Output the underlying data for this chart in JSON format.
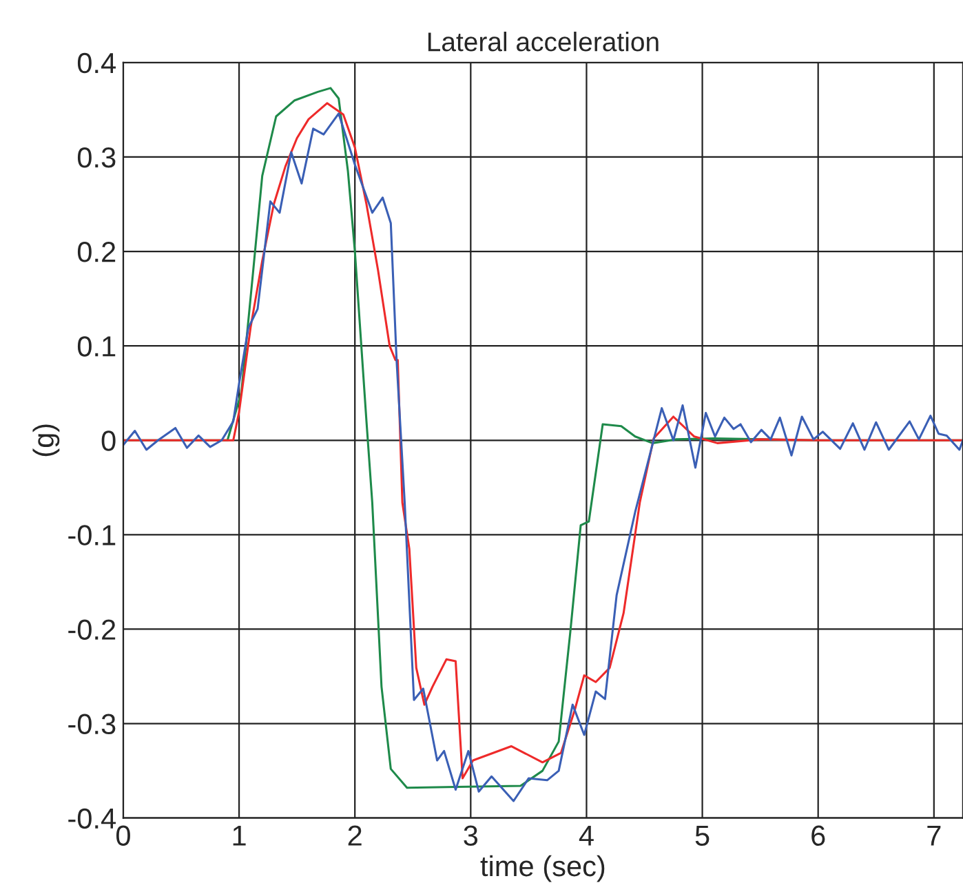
{
  "chart_data": {
    "type": "line",
    "title": "Lateral acceleration",
    "xlabel": "time (sec)",
    "ylabel": "(g)",
    "xlim": [
      0,
      7.25
    ],
    "xticks": [
      0,
      1,
      2,
      3,
      4,
      5,
      6,
      7
    ],
    "ylim": [
      -0.4,
      0.4
    ],
    "yticks": [
      -0.4,
      -0.3,
      -0.2,
      -0.1,
      0,
      0.1,
      0.2,
      0.3,
      0.4
    ],
    "grid": true,
    "marker": "none",
    "line_style": "solid",
    "series": [
      {
        "color": "#1e8a4a",
        "x": [
          0,
          0.5,
          0.9,
          1.02,
          1.12,
          1.2,
          1.32,
          1.48,
          1.68,
          1.79,
          1.86,
          1.94,
          2.0,
          2.04,
          2.1,
          2.15,
          2.23,
          2.31,
          2.45,
          2.87,
          3.43,
          3.62,
          3.76,
          3.86,
          3.95,
          4.02,
          4.14,
          4.3,
          4.42,
          4.57,
          4.77,
          5.1,
          6.0,
          7.25
        ],
        "values": [
          0,
          0,
          0,
          0.051,
          0.177,
          0.28,
          0.343,
          0.36,
          0.369,
          0.373,
          0.362,
          0.285,
          0.2,
          0.128,
          0.02,
          -0.066,
          -0.261,
          -0.348,
          -0.368,
          -0.367,
          -0.366,
          -0.35,
          -0.319,
          -0.203,
          -0.09,
          -0.086,
          0.017,
          0.015,
          0.004,
          -0.003,
          0.001,
          0.002,
          0,
          0
        ]
      },
      {
        "color": "#ee2a2a",
        "x": [
          0,
          0.5,
          0.95,
          1.0,
          1.1,
          1.2,
          1.3,
          1.4,
          1.5,
          1.6,
          1.76,
          1.9,
          2.0,
          2.1,
          2.2,
          2.3,
          2.35,
          2.37,
          2.41,
          2.47,
          2.53,
          2.6,
          2.67,
          2.79,
          2.87,
          2.93,
          3.02,
          3.35,
          3.62,
          3.78,
          3.9,
          3.98,
          4.08,
          4.2,
          4.32,
          4.46,
          4.58,
          4.75,
          4.93,
          5.13,
          5.5,
          6.0,
          7.25
        ],
        "values": [
          0,
          0,
          0,
          0.03,
          0.12,
          0.19,
          0.25,
          0.29,
          0.32,
          0.34,
          0.357,
          0.345,
          0.31,
          0.25,
          0.18,
          0.1,
          0.085,
          0.085,
          -0.066,
          -0.115,
          -0.241,
          -0.28,
          -0.261,
          -0.232,
          -0.234,
          -0.358,
          -0.339,
          -0.324,
          -0.341,
          -0.331,
          -0.285,
          -0.249,
          -0.256,
          -0.241,
          -0.183,
          -0.066,
          0.002,
          0.025,
          0.004,
          -0.003,
          0.001,
          0,
          0
        ]
      },
      {
        "color": "#3a5fb5",
        "x": [
          0,
          0.1,
          0.2,
          0.3,
          0.45,
          0.55,
          0.65,
          0.75,
          0.85,
          0.95,
          1.0,
          1.08,
          1.16,
          1.27,
          1.35,
          1.45,
          1.54,
          1.64,
          1.73,
          1.86,
          2.0,
          2.15,
          2.24,
          2.31,
          2.36,
          2.43,
          2.51,
          2.59,
          2.71,
          2.77,
          2.87,
          2.98,
          3.07,
          3.18,
          3.37,
          3.5,
          3.66,
          3.76,
          3.88,
          3.98,
          4.08,
          4.16,
          4.26,
          4.42,
          4.65,
          4.75,
          4.83,
          4.94,
          5.03,
          5.11,
          5.19,
          5.27,
          5.33,
          5.42,
          5.51,
          5.59,
          5.67,
          5.77,
          5.86,
          5.96,
          6.04,
          6.19,
          6.3,
          6.4,
          6.5,
          6.61,
          6.79,
          6.87,
          6.97,
          7.04,
          7.11,
          7.22,
          7.25
        ],
        "values": [
          -0.005,
          0.01,
          -0.01,
          0,
          0.013,
          -0.008,
          0.005,
          -0.007,
          0,
          0.02,
          0.06,
          0.119,
          0.139,
          0.253,
          0.241,
          0.305,
          0.272,
          0.33,
          0.324,
          0.346,
          0.292,
          0.241,
          0.257,
          0.23,
          0.085,
          -0.066,
          -0.275,
          -0.263,
          -0.339,
          -0.329,
          -0.37,
          -0.329,
          -0.372,
          -0.356,
          -0.382,
          -0.358,
          -0.36,
          -0.35,
          -0.28,
          -0.312,
          -0.266,
          -0.274,
          -0.164,
          -0.076,
          0.034,
          0,
          0.037,
          -0.029,
          0.029,
          0.004,
          0.024,
          0.012,
          0.017,
          -0.002,
          0.011,
          0.001,
          0.024,
          -0.016,
          0.025,
          0.001,
          0.009,
          -0.009,
          0.018,
          -0.01,
          0.019,
          -0.01,
          0.02,
          0.001,
          0.026,
          0.007,
          0.005,
          -0.01,
          0
        ]
      }
    ]
  }
}
